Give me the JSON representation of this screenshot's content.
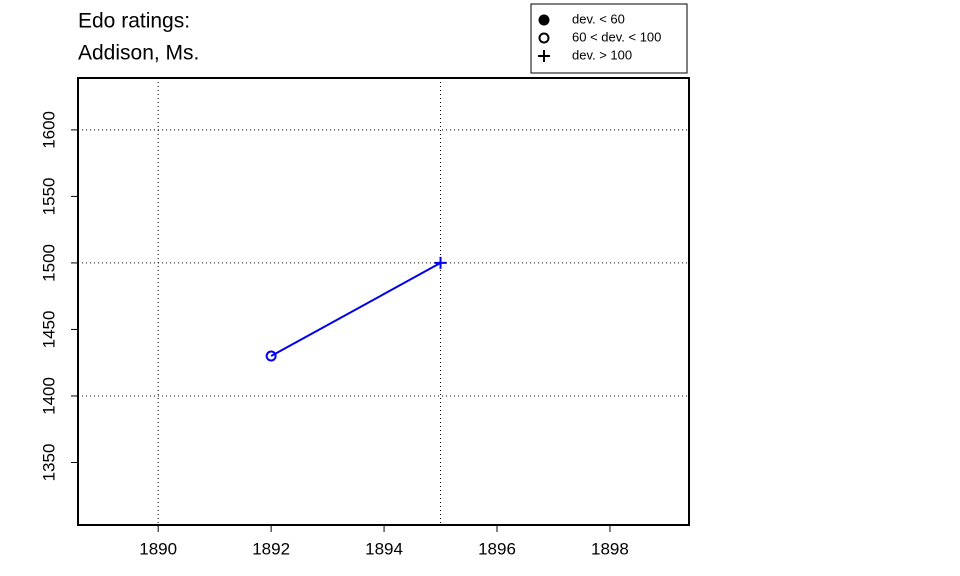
{
  "chart_data": {
    "type": "line",
    "title": [
      "Edo ratings:",
      "Addison, Ms."
    ],
    "x": [
      1892,
      1895
    ],
    "series": [
      {
        "color": "#0000ee",
        "values": [
          1430,
          1500
        ],
        "markers": [
          "open-circle",
          "plus"
        ]
      }
    ],
    "xlim": [
      1888.58,
      1899.4
    ],
    "ylim": [
      1303,
      1639
    ],
    "xticks": [
      1890,
      1892,
      1894,
      1896,
      1898
    ],
    "yticks": [
      1350,
      1400,
      1450,
      1500,
      1550,
      1600
    ],
    "xgrid": [
      1890,
      1895
    ],
    "ygrid": [
      1400,
      1500,
      1600
    ],
    "legend": [
      {
        "label": "dev. < 60",
        "marker": "filled-circle"
      },
      {
        "label": "60 < dev. < 100",
        "marker": "open-circle"
      },
      {
        "label": "dev. > 100",
        "marker": "plus"
      }
    ]
  }
}
